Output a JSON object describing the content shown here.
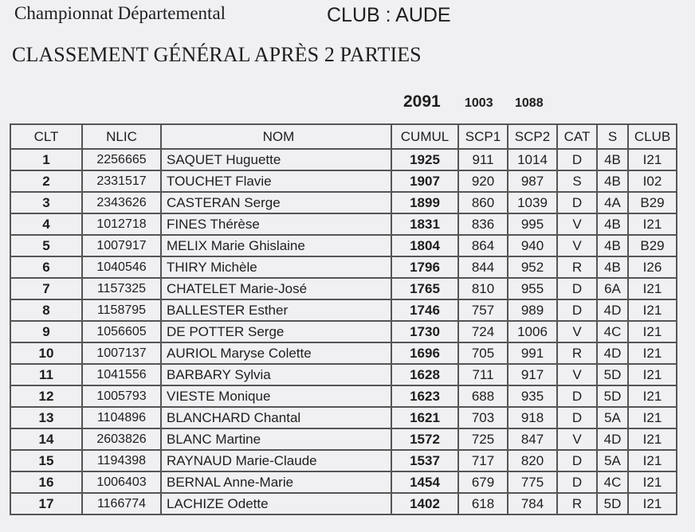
{
  "header": {
    "title": "Championnat Départemental",
    "club": "CLUB :  AUDE",
    "subtitle": "CLASSEMENT GÉNÉRAL APRÈS 2 PARTIES",
    "totals": {
      "cumul": "2091",
      "scp1": "1003",
      "scp2": "1088"
    }
  },
  "table": {
    "columns": [
      "CLT",
      "NLIC",
      "NOM",
      "CUMUL",
      "SCP1",
      "SCP2",
      "CAT",
      "S",
      "CLUB"
    ],
    "rows": [
      [
        "1",
        "2256665",
        "SAQUET Huguette",
        "1925",
        "911",
        "1014",
        "D",
        "4B",
        "I21"
      ],
      [
        "2",
        "2331517",
        "TOUCHET Flavie",
        "1907",
        "920",
        "987",
        "S",
        "4B",
        "I02"
      ],
      [
        "3",
        "2343626",
        "CASTERAN Serge",
        "1899",
        "860",
        "1039",
        "D",
        "4A",
        "B29"
      ],
      [
        "4",
        "1012718",
        "FINES Thérèse",
        "1831",
        "836",
        "995",
        "V",
        "4B",
        "I21"
      ],
      [
        "5",
        "1007917",
        "MELIX Marie Ghislaine",
        "1804",
        "864",
        "940",
        "V",
        "4B",
        "B29"
      ],
      [
        "6",
        "1040546",
        "THIRY Michèle",
        "1796",
        "844",
        "952",
        "R",
        "4B",
        "I26"
      ],
      [
        "7",
        "1157325",
        "CHATELET Marie-José",
        "1765",
        "810",
        "955",
        "D",
        "6A",
        "I21"
      ],
      [
        "8",
        "1158795",
        "BALLESTER Esther",
        "1746",
        "757",
        "989",
        "D",
        "4D",
        "I21"
      ],
      [
        "9",
        "1056605",
        "DE POTTER Serge",
        "1730",
        "724",
        "1006",
        "V",
        "4C",
        "I21"
      ],
      [
        "10",
        "1007137",
        "AURIOL Maryse Colette",
        "1696",
        "705",
        "991",
        "R",
        "4D",
        "I21"
      ],
      [
        "11",
        "1041556",
        "BARBARY Sylvia",
        "1628",
        "711",
        "917",
        "V",
        "5D",
        "I21"
      ],
      [
        "12",
        "1005793",
        "VIESTE Monique",
        "1623",
        "688",
        "935",
        "D",
        "5D",
        "I21"
      ],
      [
        "13",
        "1104896",
        "BLANCHARD Chantal",
        "1621",
        "703",
        "918",
        "D",
        "5A",
        "I21"
      ],
      [
        "14",
        "2603826",
        "BLANC Martine",
        "1572",
        "725",
        "847",
        "V",
        "4D",
        "I21"
      ],
      [
        "15",
        "1194398",
        "RAYNAUD Marie-Claude",
        "1537",
        "717",
        "820",
        "D",
        "5A",
        "I21"
      ],
      [
        "16",
        "1006403",
        "BERNAL Anne-Marie",
        "1454",
        "679",
        "775",
        "D",
        "4C",
        "I21"
      ],
      [
        "17",
        "1166774",
        "LACHIZE Odette",
        "1402",
        "618",
        "784",
        "R",
        "5D",
        "I21"
      ]
    ]
  }
}
